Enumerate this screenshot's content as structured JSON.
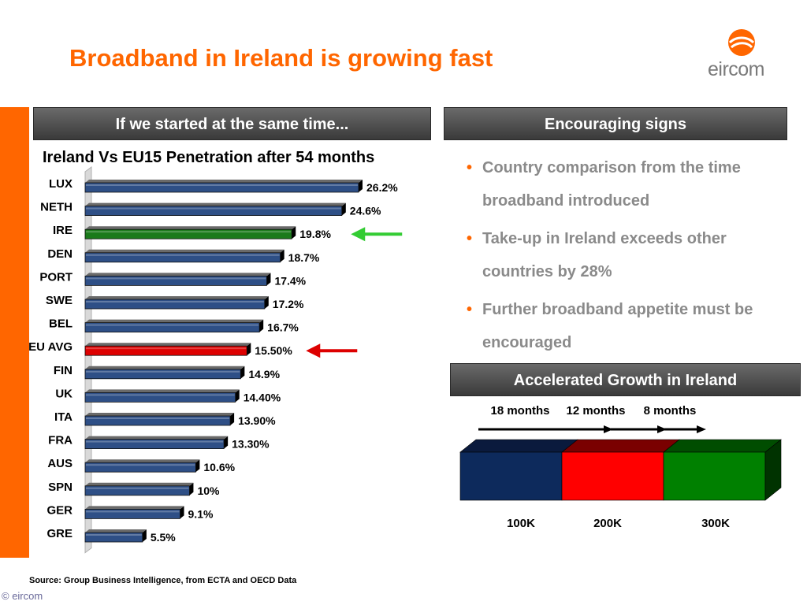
{
  "title": "Broadband in Ireland is growing fast",
  "logo": {
    "text": "eircom",
    "icon": "eircom-swirl-icon",
    "color": "#ff6600"
  },
  "left_header": "If we started at the same time...",
  "right_header": "Encouraging signs",
  "bullets": [
    "Country comparison from the time broadband introduced",
    "Take-up in Ireland exceeds other countries by 28%",
    "Further broadband appetite must be encouraged"
  ],
  "growth_header": "Accelerated Growth in Ireland",
  "growth": {
    "durations": [
      "18 months",
      "12 months",
      "8 months"
    ],
    "milestones": [
      "100K",
      "200K",
      "300K"
    ],
    "colors": [
      "#0d2a5c",
      "#ff0000",
      "#008000"
    ]
  },
  "source": "Source: Group Business Intelligence, from ECTA and OECD Data",
  "copyright": "© eircom",
  "chart_data": {
    "type": "bar",
    "orientation": "horizontal",
    "title": "Ireland Vs EU15 Penetration after 54 months",
    "categories": [
      "LUX",
      "NETH",
      "IRE",
      "DEN",
      "PORT",
      "SWE",
      "BEL",
      "EU AVG",
      "FIN",
      "UK",
      "ITA",
      "FRA",
      "AUS",
      "SPN",
      "GER",
      "GRE"
    ],
    "values": [
      26.2,
      24.6,
      19.8,
      18.7,
      17.4,
      17.2,
      16.7,
      15.5,
      14.9,
      14.4,
      13.9,
      13.3,
      10.6,
      10,
      9.1,
      5.5
    ],
    "value_labels": [
      "26.2%",
      "24.6%",
      "19.8%",
      "18.7%",
      "17.4%",
      "17.2%",
      "16.7%",
      "15.50%",
      "14.9%",
      "14.40%",
      "13.90%",
      "13.30%",
      "10.6%",
      "10%",
      "9.1%",
      "5.5%"
    ],
    "bar_colors": {
      "default": "#2e4f86",
      "IRE": "#1a7a1a",
      "EU AVG": "#dd0000"
    },
    "highlight_arrows": {
      "IRE": "#33cc33",
      "EU AVG": "#dd0000"
    },
    "grid": false,
    "legend": "none"
  }
}
